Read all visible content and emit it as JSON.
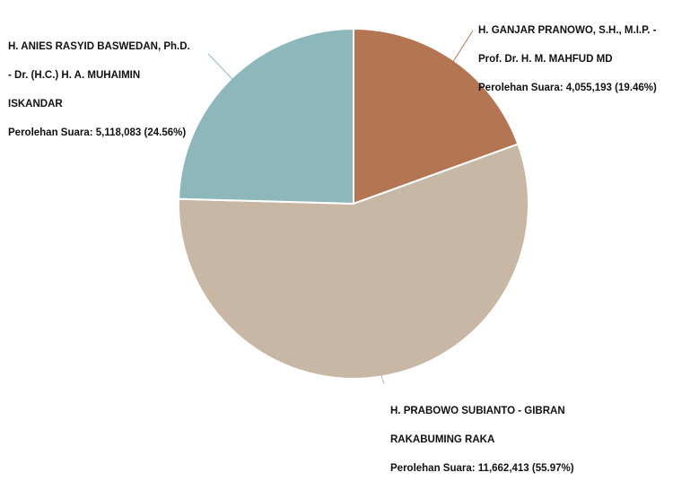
{
  "chart_data": {
    "type": "pie",
    "slices": [
      {
        "label_lines": [
          "H. GANJAR PRANOWO, S.H., M.I.P. -",
          "Prof. Dr. H. M. MAHFUD MD"
        ],
        "value_text": "Perolehan Suara: 4,055,193 (19.46%)",
        "value": 4055193,
        "percent": 19.46,
        "color": "#B47553"
      },
      {
        "label_lines": [
          "H. PRABOWO SUBIANTO - GIBRAN",
          "RAKABUMING RAKA"
        ],
        "value_text": "Perolehan Suara: 11,662,413 (55.97%)",
        "value": 11662413,
        "percent": 55.97,
        "color": "#C8B7A4"
      },
      {
        "label_lines": [
          "H. ANIES RASYID BASWEDAN, Ph.D.",
          "- Dr. (H.C.) H. A. MUHAIMIN",
          "ISKANDAR"
        ],
        "value_text": "Perolehan Suara: 5,118,083 (24.56%)",
        "value": 5118083,
        "percent": 24.56,
        "color": "#8EB7BC"
      }
    ]
  }
}
